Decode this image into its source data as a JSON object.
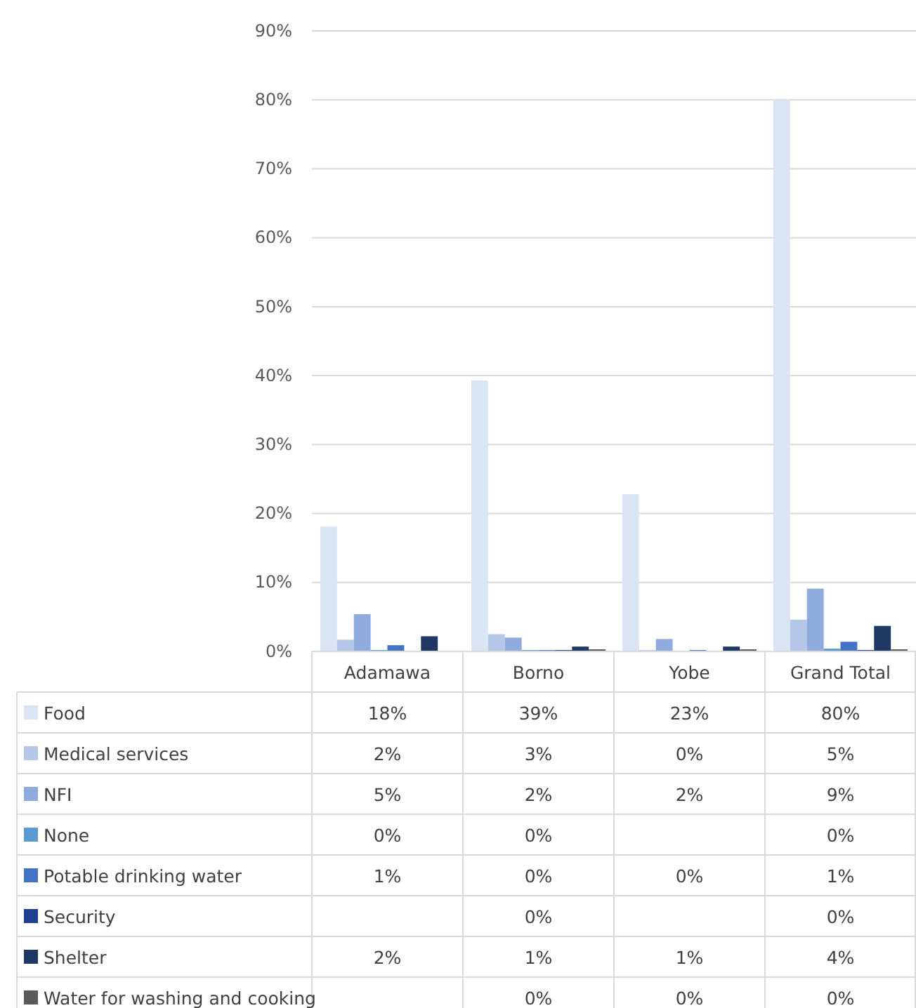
{
  "chart_data": {
    "type": "bar",
    "categories": [
      "Adamawa",
      "Borno",
      "Yobe",
      "Grand Total"
    ],
    "ylim": [
      0,
      90
    ],
    "yticks": [
      {
        "value": 0,
        "label": "0%"
      },
      {
        "value": 10,
        "label": "10%"
      },
      {
        "value": 20,
        "label": "20%"
      },
      {
        "value": 30,
        "label": "30%"
      },
      {
        "value": 40,
        "label": "40%"
      },
      {
        "value": 50,
        "label": "50%"
      },
      {
        "value": 60,
        "label": "60%"
      },
      {
        "value": 70,
        "label": "70%"
      },
      {
        "value": 80,
        "label": "80%"
      },
      {
        "value": 90,
        "label": "90%"
      }
    ],
    "grid": "y",
    "legend": "bottom",
    "series": [
      {
        "name": "Food",
        "color": "#dae5f4",
        "values": [
          18.1,
          39.3,
          22.8,
          80
        ],
        "value_labels": [
          "18%",
          "39%",
          "23%",
          "80%"
        ]
      },
      {
        "name": "Medical services",
        "color": "#b4c7e7",
        "values": [
          1.7,
          2.5,
          0.2,
          4.6
        ],
        "value_labels": [
          "2%",
          "3%",
          "0%",
          "5%"
        ]
      },
      {
        "name": "NFI",
        "color": "#8faadc",
        "values": [
          5.4,
          2.0,
          1.8,
          9.1
        ],
        "value_labels": [
          "5%",
          "2%",
          "2%",
          "9%"
        ]
      },
      {
        "name": "None",
        "color": "#5b9bd5",
        "values": [
          0.2,
          0.2,
          null,
          0.4
        ],
        "value_labels": [
          "0%",
          "0%",
          null,
          "0%"
        ]
      },
      {
        "name": "Potable drinking water",
        "color": "#4472c4",
        "values": [
          0.9,
          0.2,
          0.2,
          1.4
        ],
        "value_labels": [
          "1%",
          "0%",
          "0%",
          "1%"
        ]
      },
      {
        "name": "Security",
        "color": "#1f3f93",
        "values": [
          null,
          0.2,
          null,
          0.2
        ],
        "value_labels": [
          null,
          "0%",
          null,
          "0%"
        ]
      },
      {
        "name": "Shelter",
        "color": "#203864",
        "values": [
          2.2,
          0.7,
          0.7,
          3.7
        ],
        "value_labels": [
          "2%",
          "1%",
          "1%",
          "4%"
        ]
      },
      {
        "name": "Water for washing and cooking",
        "color": "#595959",
        "values": [
          null,
          0.3,
          0.3,
          0.3
        ],
        "value_labels": [
          null,
          "0%",
          "0%",
          "0%"
        ]
      }
    ]
  }
}
